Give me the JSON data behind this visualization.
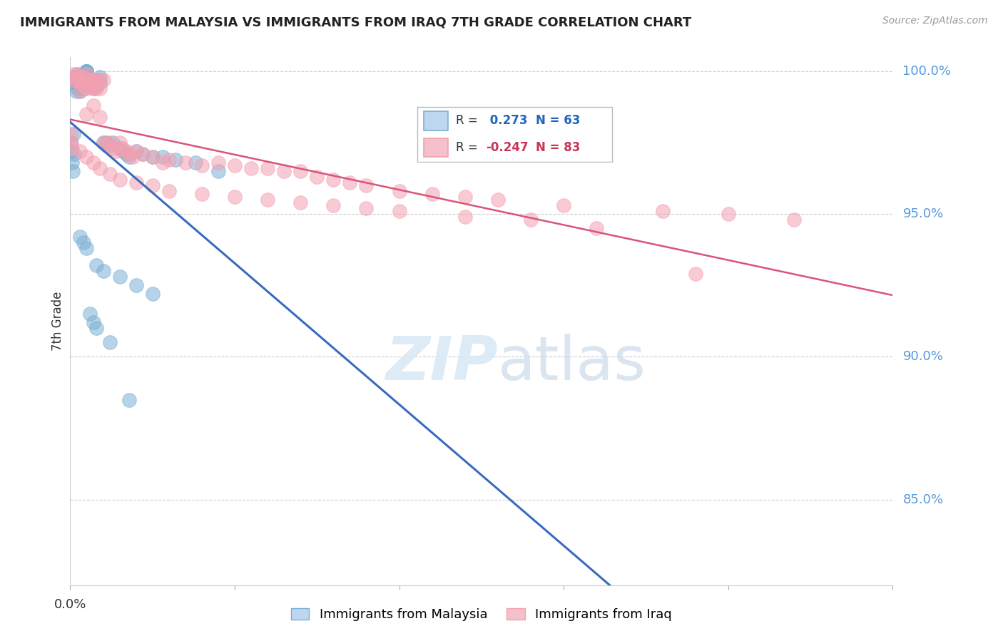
{
  "title": "IMMIGRANTS FROM MALAYSIA VS IMMIGRANTS FROM IRAQ 7TH GRADE CORRELATION CHART",
  "source": "Source: ZipAtlas.com",
  "ylabel": "7th Grade",
  "xlim": [
    0.0,
    0.25
  ],
  "ylim": [
    0.82,
    1.005
  ],
  "yticks": [
    0.85,
    0.9,
    0.95,
    1.0
  ],
  "ytick_labels": [
    "85.0%",
    "90.0%",
    "95.0%",
    "100.0%"
  ],
  "blue_R": 0.273,
  "blue_N": 63,
  "pink_R": -0.247,
  "pink_N": 83,
  "blue_color": "#7BAFD4",
  "pink_color": "#F4A0B0",
  "blue_line_color": "#3A6BC0",
  "pink_line_color": "#D9547A",
  "grid_color": "#CCCCCC",
  "blue_scatter_x": [
    0.0002,
    0.0004,
    0.0006,
    0.0008,
    0.001,
    0.0012,
    0.0015,
    0.0015,
    0.0018,
    0.002,
    0.002,
    0.002,
    0.0025,
    0.0025,
    0.003,
    0.003,
    0.003,
    0.0035,
    0.004,
    0.004,
    0.004,
    0.0045,
    0.005,
    0.005,
    0.005,
    0.005,
    0.005,
    0.006,
    0.006,
    0.007,
    0.007,
    0.008,
    0.008,
    0.009,
    0.009,
    0.01,
    0.011,
    0.012,
    0.013,
    0.015,
    0.016,
    0.017,
    0.018,
    0.02,
    0.022,
    0.025,
    0.028,
    0.032,
    0.038,
    0.045,
    0.003,
    0.004,
    0.005,
    0.008,
    0.01,
    0.015,
    0.02,
    0.025,
    0.006,
    0.007,
    0.008,
    0.012,
    0.018
  ],
  "blue_scatter_y": [
    0.975,
    0.972,
    0.968,
    0.965,
    0.978,
    0.971,
    0.998,
    0.996,
    0.993,
    0.999,
    0.997,
    0.994,
    0.998,
    0.995,
    0.998,
    0.996,
    0.993,
    0.997,
    0.999,
    0.997,
    0.994,
    0.997,
    1.0,
    1.0,
    1.0,
    1.0,
    1.0,
    0.997,
    0.995,
    0.997,
    0.994,
    0.997,
    0.995,
    0.998,
    0.996,
    0.975,
    0.975,
    0.974,
    0.975,
    0.973,
    0.972,
    0.971,
    0.97,
    0.972,
    0.971,
    0.97,
    0.97,
    0.969,
    0.968,
    0.965,
    0.942,
    0.94,
    0.938,
    0.932,
    0.93,
    0.928,
    0.925,
    0.922,
    0.915,
    0.912,
    0.91,
    0.905,
    0.885
  ],
  "pink_scatter_x": [
    0.0002,
    0.0004,
    0.0006,
    0.001,
    0.001,
    0.0015,
    0.002,
    0.002,
    0.003,
    0.003,
    0.003,
    0.004,
    0.004,
    0.005,
    0.005,
    0.005,
    0.006,
    0.006,
    0.007,
    0.007,
    0.008,
    0.008,
    0.009,
    0.009,
    0.01,
    0.01,
    0.011,
    0.012,
    0.013,
    0.014,
    0.015,
    0.016,
    0.017,
    0.018,
    0.019,
    0.02,
    0.022,
    0.025,
    0.028,
    0.03,
    0.035,
    0.04,
    0.045,
    0.05,
    0.055,
    0.06,
    0.065,
    0.07,
    0.075,
    0.08,
    0.085,
    0.09,
    0.1,
    0.11,
    0.12,
    0.13,
    0.15,
    0.18,
    0.2,
    0.22,
    0.003,
    0.005,
    0.007,
    0.009,
    0.012,
    0.015,
    0.02,
    0.025,
    0.03,
    0.04,
    0.05,
    0.06,
    0.07,
    0.08,
    0.09,
    0.1,
    0.12,
    0.14,
    0.16,
    0.19,
    0.005,
    0.007,
    0.009
  ],
  "pink_scatter_y": [
    0.978,
    0.975,
    0.973,
    0.999,
    0.997,
    0.998,
    0.999,
    0.997,
    0.998,
    0.996,
    0.993,
    0.998,
    0.995,
    0.999,
    0.997,
    0.994,
    0.997,
    0.995,
    0.997,
    0.994,
    0.997,
    0.994,
    0.997,
    0.994,
    0.997,
    0.975,
    0.974,
    0.975,
    0.973,
    0.972,
    0.975,
    0.973,
    0.972,
    0.971,
    0.97,
    0.972,
    0.971,
    0.97,
    0.968,
    0.969,
    0.968,
    0.967,
    0.968,
    0.967,
    0.966,
    0.966,
    0.965,
    0.965,
    0.963,
    0.962,
    0.961,
    0.96,
    0.958,
    0.957,
    0.956,
    0.955,
    0.953,
    0.951,
    0.95,
    0.948,
    0.972,
    0.97,
    0.968,
    0.966,
    0.964,
    0.962,
    0.961,
    0.96,
    0.958,
    0.957,
    0.956,
    0.955,
    0.954,
    0.953,
    0.952,
    0.951,
    0.949,
    0.948,
    0.945,
    0.929,
    0.985,
    0.988,
    0.984
  ]
}
